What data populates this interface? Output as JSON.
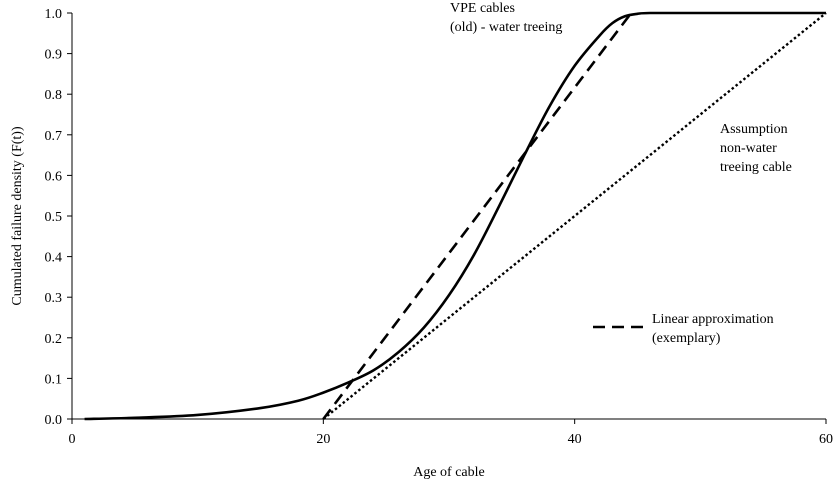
{
  "chart_data": {
    "type": "line",
    "title": "",
    "xlabel": "Age of cable",
    "ylabel": "Cumulated failure density (F(t))",
    "xlim": [
      0,
      60
    ],
    "ylim": [
      0,
      1.0
    ],
    "xticks": [
      0,
      20,
      40,
      60
    ],
    "yticks": [
      0.0,
      0.1,
      0.2,
      0.3,
      0.4,
      0.5,
      0.6,
      0.7,
      0.8,
      0.9,
      1.0
    ],
    "xtick_labels": [
      "0",
      "20",
      "40",
      "60"
    ],
    "ytick_labels": [
      "0.0",
      "0.1",
      "0.2",
      "0.3",
      "0.4",
      "0.5",
      "0.6",
      "0.7",
      "0.8",
      "0.9",
      "1.0"
    ],
    "grid": false,
    "series": [
      {
        "style": "solid",
        "x": [
          1,
          5,
          10,
          15,
          18,
          20,
          22,
          24,
          26,
          28,
          30,
          32,
          34,
          36,
          38,
          40,
          42,
          43,
          44,
          45,
          46,
          50,
          55,
          60
        ],
        "y": [
          0.0,
          0.003,
          0.01,
          0.027,
          0.045,
          0.065,
          0.09,
          0.12,
          0.165,
          0.225,
          0.305,
          0.405,
          0.525,
          0.65,
          0.77,
          0.87,
          0.945,
          0.975,
          0.992,
          0.998,
          1.0,
          1.0,
          1.0,
          1.0
        ]
      },
      {
        "style": "dashed",
        "x": [
          20,
          44.5
        ],
        "y": [
          0.0,
          1.0
        ]
      },
      {
        "style": "dotted",
        "x": [
          20,
          60
        ],
        "y": [
          0.0,
          1.0
        ]
      }
    ],
    "annotations": [
      {
        "lines": [
          "VPE cables",
          "(old) - water treeing"
        ]
      },
      {
        "lines": [
          "Assumption",
          "non-water",
          "treeing cable"
        ]
      }
    ],
    "legend": {
      "placement": "lower-right",
      "entries": [
        {
          "style": "dashed",
          "lines": [
            "Linear approximation",
            "(exemplary)"
          ]
        }
      ]
    }
  }
}
